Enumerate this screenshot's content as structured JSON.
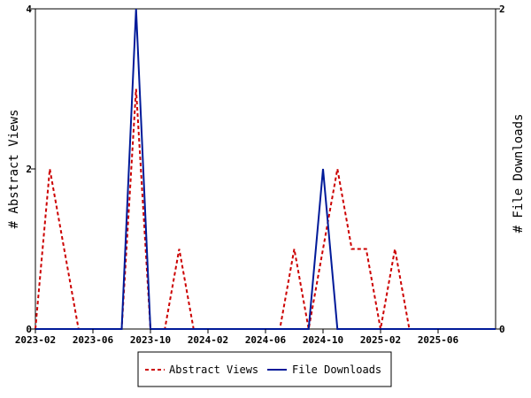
{
  "chart_data": {
    "type": "line",
    "x_ticks": [
      "2023-02",
      "2023-06",
      "2023-10",
      "2024-02",
      "2024-06",
      "2024-10",
      "2025-02",
      "2025-06"
    ],
    "x_range": [
      "2023-02",
      "2025-10"
    ],
    "left_axis": {
      "label": "# Abstract Views",
      "ylim": [
        0,
        4
      ],
      "ticks": [
        "0",
        "2",
        "4"
      ]
    },
    "right_axis": {
      "label": "# File Downloads",
      "ylim": [
        0,
        2
      ],
      "ticks": [
        "0",
        "2"
      ]
    },
    "series": [
      {
        "name": "Abstract Views",
        "axis": "left",
        "color": "#cc0000",
        "style": "dashed",
        "x": [
          "2023-02",
          "2023-03",
          "2023-04",
          "2023-05",
          "2023-06",
          "2023-07",
          "2023-08",
          "2023-09",
          "2023-10",
          "2023-11",
          "2023-12",
          "2024-01",
          "2024-02",
          "2024-03",
          "2024-04",
          "2024-05",
          "2024-06",
          "2024-07",
          "2024-08",
          "2024-09",
          "2024-10",
          "2024-11",
          "2024-12",
          "2025-01",
          "2025-02",
          "2025-03",
          "2025-04",
          "2025-05",
          "2025-06",
          "2025-07",
          "2025-08",
          "2025-09",
          "2025-10"
        ],
        "values": [
          0,
          2,
          1,
          0,
          0,
          0,
          0,
          3,
          0,
          0,
          1,
          0,
          0,
          0,
          0,
          0,
          0,
          0,
          1,
          0,
          1,
          2,
          1,
          1,
          0,
          1,
          0,
          0,
          0,
          0,
          0,
          0,
          0
        ]
      },
      {
        "name": "File Downloads",
        "axis": "right",
        "color": "#001a99",
        "style": "solid",
        "x": [
          "2023-02",
          "2023-03",
          "2023-04",
          "2023-05",
          "2023-06",
          "2023-07",
          "2023-08",
          "2023-09",
          "2023-10",
          "2023-11",
          "2023-12",
          "2024-01",
          "2024-02",
          "2024-03",
          "2024-04",
          "2024-05",
          "2024-06",
          "2024-07",
          "2024-08",
          "2024-09",
          "2024-10",
          "2024-11",
          "2024-12",
          "2025-01",
          "2025-02",
          "2025-03",
          "2025-04",
          "2025-05",
          "2025-06",
          "2025-07",
          "2025-08",
          "2025-09",
          "2025-10"
        ],
        "values": [
          0,
          0,
          0,
          0,
          0,
          0,
          0,
          2,
          0,
          0,
          0,
          0,
          0,
          0,
          0,
          0,
          0,
          0,
          0,
          0,
          1,
          0,
          0,
          0,
          0,
          0,
          0,
          0,
          0,
          0,
          0,
          0,
          0
        ]
      }
    ],
    "legend": {
      "placement": "bottom-center",
      "entries": [
        "Abstract Views",
        "File Downloads"
      ]
    },
    "grid": false
  }
}
